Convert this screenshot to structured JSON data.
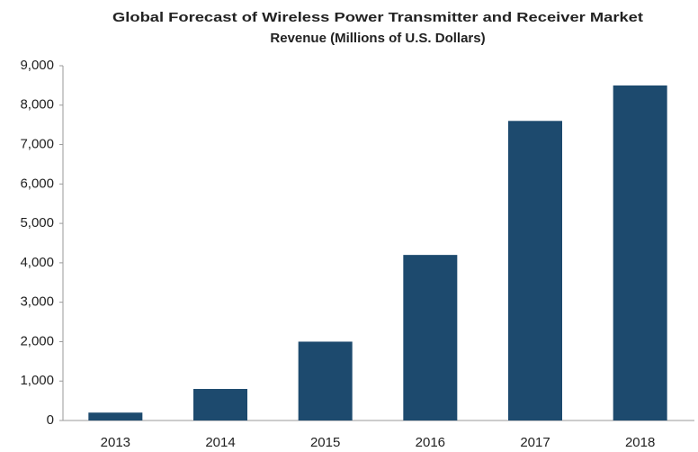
{
  "chart_data": {
    "type": "bar",
    "title": [
      "Global Forecast of Wireless Power Transmitter and Receiver Market",
      "Revenue  (Millions of U.S. Dollars)"
    ],
    "categories": [
      "2013",
      "2014",
      "2015",
      "2016",
      "2017",
      "2018"
    ],
    "values": [
      200,
      800,
      2000,
      4200,
      7600,
      8500
    ],
    "color": "#1d4a6e",
    "ylim": [
      0,
      9000
    ],
    "yticks": [
      0,
      {
        "value": 1000,
        "label": "1,000"
      },
      {
        "value": 2000,
        "label": "2,000"
      },
      {
        "value": 3000,
        "label": "3,000"
      },
      {
        "value": 4000,
        "label": "4,000"
      },
      {
        "value": 5000,
        "label": "5,000"
      },
      {
        "value": 6000,
        "label": "6,000"
      },
      {
        "value": 7000,
        "label": "7,000"
      },
      {
        "value": 8000,
        "label": "8,000"
      },
      {
        "value": 9000,
        "label": "9,000"
      }
    ],
    "grid": false
  }
}
